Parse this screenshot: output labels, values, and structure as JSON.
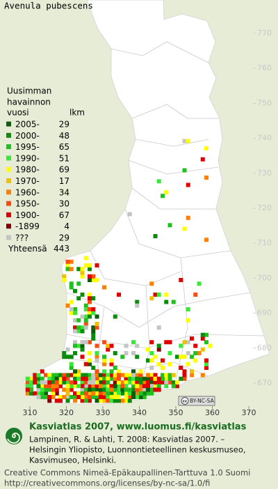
{
  "title": "Avenula pubescens",
  "legend": {
    "heading": [
      "Uusimman",
      "havainnon",
      "vuosi"
    ],
    "count_heading": "lkm",
    "rows": [
      {
        "label": "2005-",
        "count": 29,
        "color": "#0b5e0b"
      },
      {
        "label": "2000-",
        "count": 48,
        "color": "#0c8c0c"
      },
      {
        "label": "1995-",
        "count": 65,
        "color": "#1fc01f"
      },
      {
        "label": "1990-",
        "count": 51,
        "color": "#3ae83a"
      },
      {
        "label": "1980-",
        "count": 69,
        "color": "#ffff00"
      },
      {
        "label": "1970-",
        "count": 17,
        "color": "#f0c000"
      },
      {
        "label": "1960-",
        "count": 34,
        "color": "#ff8000"
      },
      {
        "label": "1950-",
        "count": 30,
        "color": "#ff4a10"
      },
      {
        "label": "1900-",
        "count": 67,
        "color": "#e00000"
      },
      {
        "label": "-1899",
        "count": 4,
        "color": "#800000"
      },
      {
        "label": "???",
        "count": 29,
        "color": "#c4c4c4"
      }
    ],
    "total_label": "Yhteensä",
    "total": 443
  },
  "y_ticks": [
    770,
    760,
    750,
    740,
    730,
    720,
    710,
    700,
    690,
    680,
    670
  ],
  "x_ticks": [
    310,
    320,
    330,
    340,
    350,
    360,
    370
  ],
  "license_badge": [
    "cc",
    "BY-NC-SA"
  ],
  "footer": {
    "title": "Kasviatlas 2007, www.luomus.fi/kasviatlas",
    "citation": [
      "Lampinen, R. & Lahti, T. 2008: Kasviatlas 2007. –",
      "Helsingin Yliopisto, Luonnontieteellinen keskusmuseo,",
      "Kasvimuseo, Helsinki."
    ],
    "license": [
      "Creative Commons Nimeä-Epäkaupallinen-Tarttuva 1.0 Suomi",
      "http://creativecommons.org/licenses/by-nc-sa/1.0/fi"
    ]
  }
}
